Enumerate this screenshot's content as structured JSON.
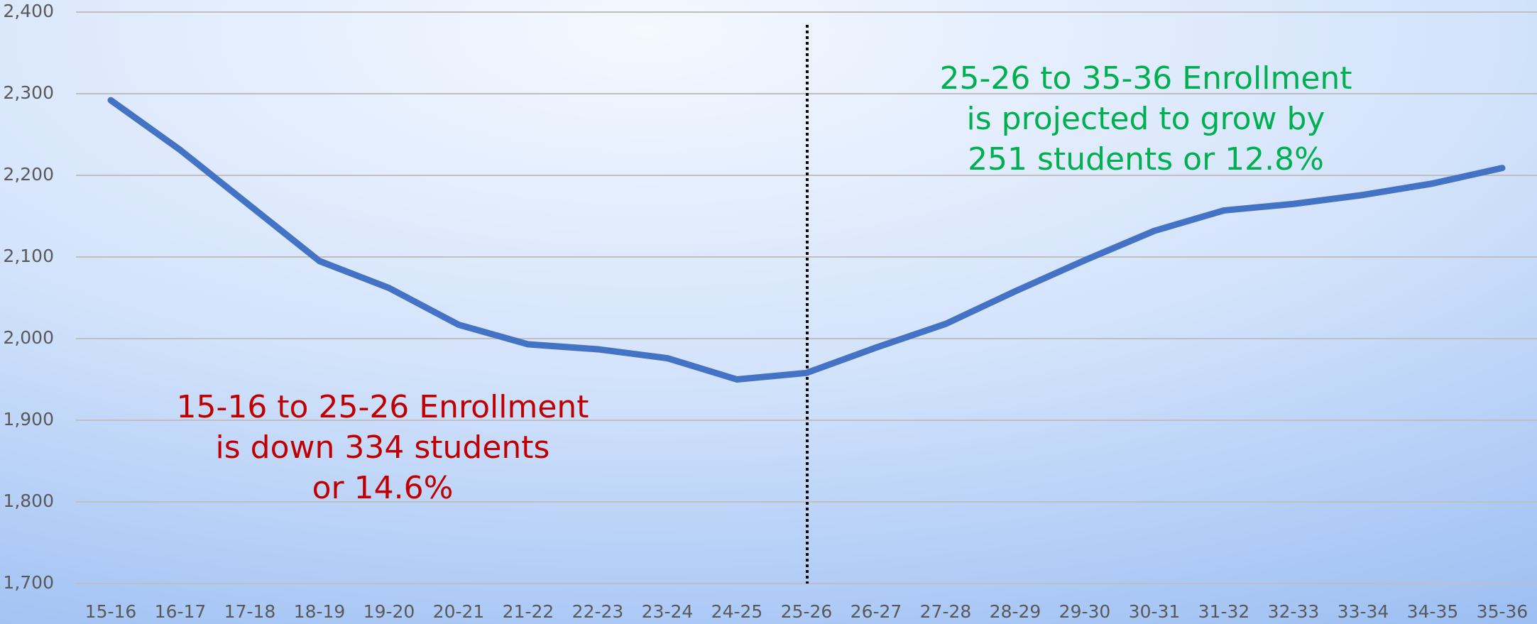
{
  "chart_data": {
    "type": "line",
    "categories": [
      "15-16",
      "16-17",
      "17-18",
      "18-19",
      "19-20",
      "20-21",
      "21-22",
      "22-23",
      "23-24",
      "24-25",
      "25-26",
      "26-27",
      "27-28",
      "28-29",
      "29-30",
      "30-31",
      "31-32",
      "32-33",
      "33-34",
      "34-35",
      "35-36"
    ],
    "series": [
      {
        "name": "Enrollment",
        "color": "#4472c4",
        "values": [
          2292,
          2231,
          2163,
          2095,
          2062,
          2017,
          1993,
          1987,
          1976,
          1950,
          1958,
          1989,
          2018,
          2058,
          2096,
          2132,
          2157,
          2165,
          2176,
          2190,
          2209
        ]
      }
    ],
    "ylim": [
      1700,
      2400
    ],
    "yticks": [
      {
        "value": 1700,
        "label": "1,700"
      },
      {
        "value": 1800,
        "label": "1,800"
      },
      {
        "value": 1900,
        "label": "1,900"
      },
      {
        "value": 2000,
        "label": "2,000"
      },
      {
        "value": 2100,
        "label": "2,100"
      },
      {
        "value": 2200,
        "label": "2,200"
      },
      {
        "value": 2300,
        "label": "2,300"
      },
      {
        "value": 2400,
        "label": "2,400"
      }
    ],
    "grid": true,
    "annotations": [
      {
        "lines": [
          "25-26 to 35-36 Enrollment",
          "is projected to grow by",
          "251 students or 12.8%"
        ],
        "color": "#00b050"
      },
      {
        "lines": [
          "15-16 to 25-26 Enrollment",
          "is down 334 students",
          "or 14.6%"
        ],
        "color": "#c00000"
      }
    ]
  }
}
